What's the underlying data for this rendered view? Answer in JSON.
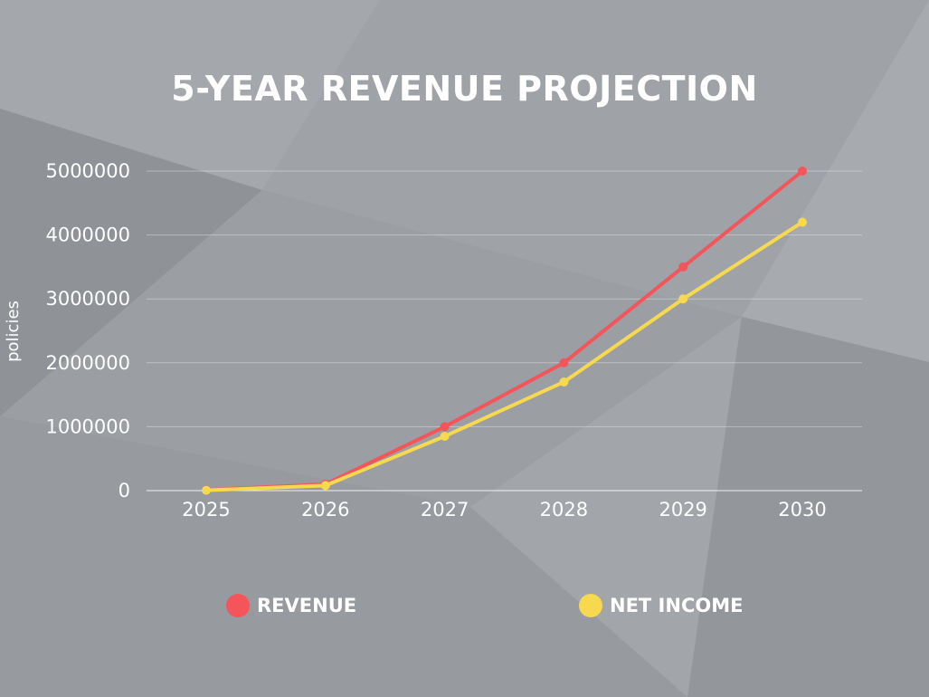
{
  "chart_data": {
    "type": "line",
    "title": "5-YEAR REVENUE PROJECTION",
    "xlabel": "",
    "ylabel": "policies",
    "categories": [
      "2025",
      "2026",
      "2027",
      "2028",
      "2029",
      "2030"
    ],
    "ylim": [
      0,
      5000000
    ],
    "yticks": [
      "0",
      "1000000",
      "2000000",
      "3000000",
      "4000000",
      "5000000"
    ],
    "grid": true,
    "legend_position": "bottom",
    "series": [
      {
        "name": "REVENUE",
        "color": "#f4555a",
        "values": [
          10000,
          100000,
          1000000,
          2000000,
          3500000,
          5000000
        ]
      },
      {
        "name": "NET INCOME",
        "color": "#f6d94e",
        "values": [
          5000,
          80000,
          850000,
          1700000,
          3000000,
          4200000
        ]
      }
    ]
  }
}
